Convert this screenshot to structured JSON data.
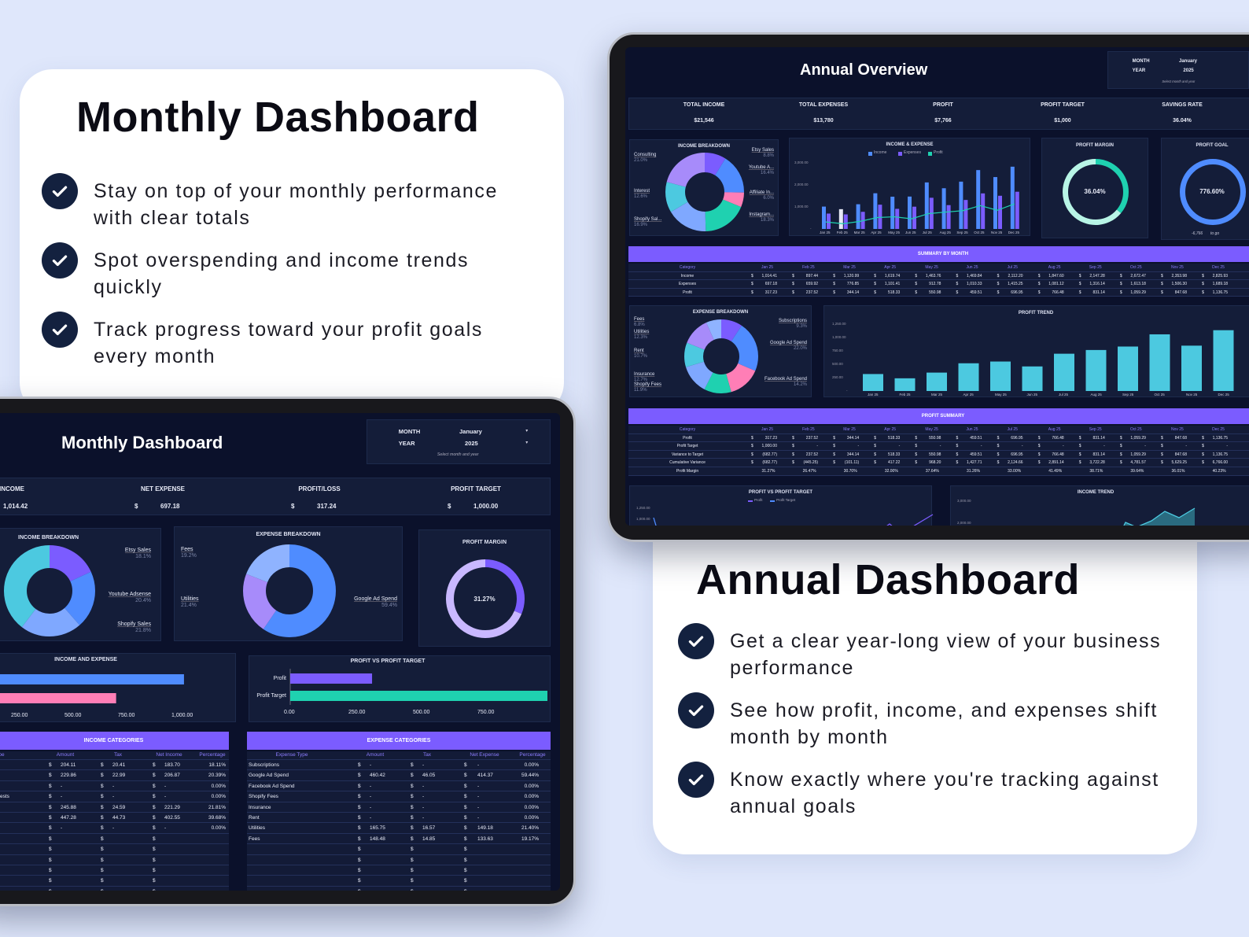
{
  "left_card": {
    "title": "Monthly Dashboard",
    "bullets": [
      "Stay on top of your monthly performance with clear totals",
      "Spot overspending and income trends quickly",
      "Track progress toward your profit goals every month"
    ]
  },
  "right_card": {
    "title": "Annual Dashboard",
    "bullets": [
      "Get a clear year-long view of your business performance",
      "See how profit, income, and expenses shift month by month",
      "Know exactly where you're tracking against annual goals"
    ]
  },
  "colors": {
    "screen": "#0b112b",
    "panel": "#141d39",
    "accent": "#7b5cff",
    "blue": "#4f8cff",
    "pink": "#ff7eb6",
    "teal": "#1fd1b0",
    "cyan": "#4cc9e0"
  },
  "annual": {
    "title": "Annual Overview",
    "selector": {
      "month_label": "MONTH",
      "month_value": "January",
      "year_label": "YEAR",
      "year_value": "2025",
      "hint": "Select month and year"
    },
    "kpis": [
      {
        "label": "TOTAL INCOME",
        "value": "$21,546"
      },
      {
        "label": "TOTAL EXPENSES",
        "value": "$13,780"
      },
      {
        "label": "PROFIT",
        "value": "$7,766"
      },
      {
        "label": "PROFIT TARGET",
        "value": "$1,000"
      },
      {
        "label": "SAVINGS RATE",
        "value": "36.04%"
      }
    ],
    "income_breakdown": {
      "title": "INCOME BREAKDOWN",
      "segments": [
        {
          "label": "Etsy Sales",
          "pct": "8.8%",
          "value": 8.8,
          "color": "#7b5cff",
          "side": "right"
        },
        {
          "label": "Youtube A...",
          "pct": "16.4%",
          "value": 16.4,
          "color": "#4f8cff",
          "side": "right"
        },
        {
          "label": "Affiliate In...",
          "pct": "6.0%",
          "value": 6.0,
          "color": "#ff7eb6",
          "side": "right"
        },
        {
          "label": "Instagram...",
          "pct": "18.3%",
          "value": 18.3,
          "color": "#1fd1b0",
          "side": "right"
        },
        {
          "label": "Shopify Sal...",
          "pct": "16.9%",
          "value": 16.9,
          "color": "#7fa8ff",
          "side": "left"
        },
        {
          "label": "Interest",
          "pct": "12.6%",
          "value": 12.6,
          "color": "#4cc9e0",
          "side": "left"
        },
        {
          "label": "Consulting",
          "pct": "21.0%",
          "value": 21.0,
          "color": "#a78bfa",
          "side": "left"
        }
      ]
    },
    "income_expense": {
      "title": "INCOME & EXPENSE",
      "legend": [
        {
          "label": "Income",
          "color": "#4f8cff"
        },
        {
          "label": "Expenses",
          "color": "#7b5cff"
        },
        {
          "label": "Profit",
          "color": "#1fd1b0"
        }
      ],
      "y_ticks": [
        "-",
        "1,000.00",
        "2,000.00",
        "3,000.00"
      ],
      "y_max": 3000
    },
    "profit_margin": {
      "title": "PROFIT MARGIN",
      "value": "36.04%",
      "fraction": 0.3604
    },
    "profit_goal": {
      "title": "PROFIT GOAL",
      "value": "776.60%",
      "fraction": 1,
      "remaining": "-6,766",
      "remaining_label": "to go"
    },
    "summary": {
      "title": "SUMMARY BY MONTH",
      "category_label": "Category",
      "months": [
        "Jan 25",
        "Feb 25",
        "Mar 25",
        "Apr 25",
        "May 25",
        "Jun 25",
        "Jul 25",
        "Aug 25",
        "Sep 25",
        "Oct 25",
        "Nov 25",
        "Dec 25"
      ],
      "rows": [
        {
          "label": "Income",
          "values": [
            "1,014.41",
            "897.44",
            "1,120.99",
            "1,619.74",
            "1,463.76",
            "1,469.84",
            "2,112.20",
            "1,847.60",
            "2,147.28",
            "2,672.47",
            "2,353.98",
            "2,825.93"
          ]
        },
        {
          "label": "Expenses",
          "values": [
            "697.18",
            "659.92",
            "776.85",
            "1,101.41",
            "912.78",
            "1,010.33",
            "1,415.25",
            "1,081.12",
            "1,316.14",
            "1,613.18",
            "1,506.30",
            "1,689.18"
          ]
        },
        {
          "label": "Profit",
          "values": [
            "317.23",
            "237.52",
            "344.14",
            "518.33",
            "550.98",
            "459.51",
            "696.95",
            "766.48",
            "831.14",
            "1,059.29",
            "847.68",
            "1,136.75"
          ]
        }
      ]
    },
    "expense_breakdown": {
      "title": "EXPENSE BREAKDOWN",
      "segments": [
        {
          "label": "Subscriptions",
          "pct": "9.3%",
          "value": 9.3,
          "color": "#7b5cff",
          "side": "right"
        },
        {
          "label": "Google Ad Spend",
          "pct": "22.0%",
          "value": 22.0,
          "color": "#4f8cff",
          "side": "right"
        },
        {
          "label": "Facebook Ad Spend",
          "pct": "14.2%",
          "value": 14.2,
          "color": "#ff7eb6",
          "side": "right"
        },
        {
          "label": "Shopify Fees",
          "pct": "11.9%",
          "value": 11.9,
          "color": "#1fd1b0",
          "side": "left"
        },
        {
          "label": "Insurance",
          "pct": "12.7%",
          "value": 12.7,
          "color": "#7fa8ff",
          "side": "left"
        },
        {
          "label": "Rent",
          "pct": "10.7%",
          "value": 10.7,
          "color": "#4cc9e0",
          "side": "left"
        },
        {
          "label": "Utilities",
          "pct": "12.3%",
          "value": 12.3,
          "color": "#a78bfa",
          "side": "left"
        },
        {
          "label": "Fees",
          "pct": "6.8%",
          "value": 6.8,
          "color": "#8fb3ff",
          "side": "left"
        }
      ]
    },
    "profit_trend": {
      "title": "PROFIT TREND",
      "y_ticks": [
        "-",
        "250.00",
        "500.00",
        "750.00",
        "1,000.00",
        "1,250.00"
      ],
      "y_max": 1250,
      "color": "#4cc9e0"
    },
    "profit_summary": {
      "title": "PROFIT SUMMARY",
      "category_label": "Category",
      "rows": [
        {
          "label": "Profit",
          "values": [
            "317.23",
            "237.52",
            "344.14",
            "518.33",
            "550.98",
            "459.51",
            "696.95",
            "766.48",
            "831.14",
            "1,059.29",
            "847.68",
            "1,136.75"
          ],
          "dollar": true
        },
        {
          "label": "Profit Target",
          "values": [
            "1,000.00",
            "-",
            "-",
            "-",
            "-",
            "-",
            "-",
            "-",
            "-",
            "-",
            "-",
            "-"
          ],
          "dollar": true
        },
        {
          "label": "Variance to Target",
          "values": [
            "(682.77)",
            "237.52",
            "344.14",
            "518.33",
            "550.98",
            "459.51",
            "696.95",
            "766.48",
            "831.14",
            "1,059.29",
            "847.68",
            "1,136.75"
          ],
          "dollar": true
        },
        {
          "label": "Cumulative Variance",
          "values": [
            "(682.77)",
            "(445.25)",
            "(101.11)",
            "417.22",
            "968.20",
            "1,427.71",
            "2,124.66",
            "2,891.14",
            "3,722.28",
            "4,781.57",
            "5,629.25",
            "6,766.00"
          ],
          "dollar": true
        },
        {
          "label": "Profit Margin",
          "values": [
            "31.27%",
            "26.47%",
            "30.70%",
            "32.00%",
            "37.64%",
            "31.26%",
            "33.00%",
            "41.49%",
            "38.71%",
            "39.64%",
            "36.01%",
            "40.23%"
          ],
          "dollar": false
        }
      ]
    },
    "profit_vs_target": {
      "title": "PROFIT VS PROFIT TARGET",
      "legend": [
        {
          "label": "Profit",
          "color": "#7b5cff"
        },
        {
          "label": "Profit Target",
          "color": "#4f8cff"
        }
      ],
      "y_ticks": [
        "1,250.00",
        "1,000.00"
      ]
    },
    "income_trend": {
      "title": "INCOME TREND",
      "y_ticks": [
        "3,000.00",
        "2,000.00"
      ]
    }
  },
  "monthly": {
    "title": "Monthly Dashboard",
    "selector": {
      "month_label": "MONTH",
      "month_value": "January",
      "year_label": "YEAR",
      "year_value": "2025",
      "hint": "Select month and year"
    },
    "kpis": [
      {
        "label": "INCOME",
        "currency": "",
        "value": "1,014.42"
      },
      {
        "label": "NET EXPENSE",
        "currency": "$",
        "value": "697.18"
      },
      {
        "label": "PROFIT/LOSS",
        "currency": "$",
        "value": "317.24"
      },
      {
        "label": "PROFIT TARGET",
        "currency": "$",
        "value": "1,000.00"
      }
    ],
    "income_breakdown": {
      "title": "INCOME BREAKDOWN",
      "segments": [
        {
          "label": "Etsy Sales",
          "pct": "18.1%",
          "value": 18.1,
          "color": "#7b5cff"
        },
        {
          "label": "Youtube Adsense",
          "pct": "20.4%",
          "value": 20.4,
          "color": "#4f8cff"
        },
        {
          "label": "Shopify Sales",
          "pct": "21.8%",
          "value": 21.8,
          "color": "#7fa8ff"
        },
        {
          "label": "",
          "pct": "",
          "value": 39.7,
          "color": "#4cc9e0"
        }
      ]
    },
    "expense_breakdown": {
      "title": "EXPENSE BREAKDOWN",
      "segments": [
        {
          "label": "Google Ad Spend",
          "pct": "59.4%",
          "value": 59.4,
          "color": "#4f8cff"
        },
        {
          "label": "Utilities",
          "pct": "21.4%",
          "value": 21.4,
          "color": "#a78bfa"
        },
        {
          "label": "Fees",
          "pct": "19.2%",
          "value": 19.2,
          "color": "#8fb3ff"
        }
      ]
    },
    "profit_margin": {
      "title": "PROFIT MARGIN",
      "value": "31.27%",
      "fraction": 0.3127
    },
    "income_expense": {
      "title": "INCOME AND EXPENSE",
      "income": 1014.42,
      "expense": 697.18,
      "x_ticks": [
        "250.00",
        "500.00",
        "750.00",
        "1,000.00"
      ]
    },
    "profit_vs_target": {
      "title": "PROFIT VS PROFIT TARGET",
      "labels": [
        "Profit",
        "Profit Target"
      ],
      "profit": 317.24,
      "target": 1000,
      "x_ticks": [
        "0.00",
        "250.00",
        "500.00",
        "750.00"
      ]
    },
    "income_categories": {
      "title": "INCOME CATEGORIES",
      "headers": [
        "pe",
        "Amount",
        "Tax",
        "Net Income",
        "Percentage"
      ],
      "rows": [
        [
          "",
          "204.11",
          "20.41",
          "183.70",
          "18.11%"
        ],
        [
          "",
          "229.86",
          "22.99",
          "206.87",
          "20.39%"
        ],
        [
          "",
          "-",
          "-",
          "-",
          "0.00%"
        ],
        [
          "ests",
          "-",
          "-",
          "-",
          "0.00%"
        ],
        [
          "",
          "245.88",
          "24.59",
          "221.29",
          "21.81%"
        ],
        [
          "",
          "447.28",
          "44.73",
          "402.55",
          "39.68%"
        ],
        [
          "",
          "-",
          "-",
          "-",
          "0.00%"
        ],
        [
          "",
          "",
          "",
          "",
          ""
        ],
        [
          "",
          "",
          "",
          "",
          ""
        ],
        [
          "",
          "",
          "",
          "",
          ""
        ],
        [
          "",
          "",
          "",
          "",
          ""
        ],
        [
          "",
          "",
          "",
          "",
          ""
        ],
        [
          "",
          "",
          "",
          "",
          ""
        ]
      ]
    },
    "expense_categories": {
      "title": "EXPENSE CATEGORIES",
      "headers": [
        "Expense Type",
        "Amount",
        "Tax",
        "Net Expense",
        "Percentage"
      ],
      "rows": [
        [
          "Subscriptions",
          "-",
          "-",
          "-",
          "0.00%"
        ],
        [
          "Google Ad Spend",
          "460.42",
          "46.05",
          "414.37",
          "59.44%"
        ],
        [
          "Facebook Ad Spend",
          "-",
          "-",
          "-",
          "0.00%"
        ],
        [
          "Shopify Fees",
          "-",
          "-",
          "-",
          "0.00%"
        ],
        [
          "Insurance",
          "-",
          "-",
          "-",
          "0.00%"
        ],
        [
          "Rent",
          "-",
          "-",
          "-",
          "0.00%"
        ],
        [
          "Utilities",
          "165.75",
          "16.57",
          "149.18",
          "21.40%"
        ],
        [
          "Fees",
          "148.48",
          "14.85",
          "133.63",
          "19.17%"
        ],
        [
          "",
          "",
          "",
          "",
          ""
        ],
        [
          "",
          "",
          "",
          "",
          ""
        ],
        [
          "",
          "",
          "",
          "",
          ""
        ],
        [
          "",
          "",
          "",
          "",
          ""
        ],
        [
          "",
          "",
          "",
          "",
          ""
        ]
      ]
    },
    "currency_symbol": "$"
  }
}
